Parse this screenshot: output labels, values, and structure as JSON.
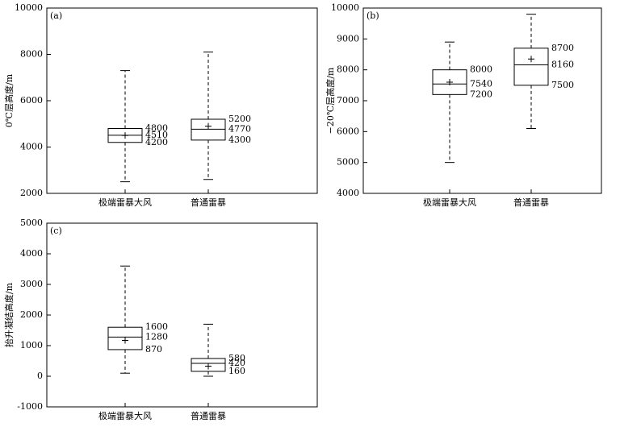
{
  "chart_data": [
    {
      "type": "box",
      "panel_label": "(a)",
      "ylabel": "0℃层高度/m",
      "categories": [
        "极端雷暴大风",
        "普通雷暴"
      ],
      "boxes": [
        {
          "whislo": 2500,
          "q1": 4200,
          "median": 4510,
          "q3": 4800,
          "whishi": 7300,
          "mean": 4500
        },
        {
          "whislo": 2600,
          "q1": 4300,
          "median": 4770,
          "q3": 5200,
          "whishi": 8100,
          "mean": 4900
        }
      ],
      "color": "#000000",
      "ylim": [
        2000,
        10000
      ],
      "yticks": [
        2000,
        4000,
        6000,
        8000,
        10000
      ]
    },
    {
      "type": "box",
      "panel_label": "(b)",
      "ylabel": "−20℃层高度/m",
      "categories": [
        "极端雷暴大风",
        "普通雷暴"
      ],
      "boxes": [
        {
          "whislo": 5000,
          "q1": 7200,
          "median": 7540,
          "q3": 8000,
          "whishi": 8900,
          "mean": 7600
        },
        {
          "whislo": 6100,
          "q1": 7500,
          "median": 8160,
          "q3": 8700,
          "whishi": 9800,
          "mean": 8350
        }
      ],
      "color": "#000000",
      "ylim": [
        4000,
        10000
      ],
      "yticks": [
        4000,
        5000,
        6000,
        7000,
        8000,
        9000,
        10000
      ]
    },
    {
      "type": "box",
      "panel_label": "(c)",
      "ylabel": "抬升凝结高度/m",
      "categories": [
        "极端雷暴大风",
        "普通雷暴"
      ],
      "boxes": [
        {
          "whislo": 100,
          "q1": 870,
          "median": 1280,
          "q3": 1600,
          "whishi": 3600,
          "mean": 1170
        },
        {
          "whislo": 0,
          "q1": 160,
          "median": 420,
          "q3": 580,
          "whishi": 1700,
          "mean": 330
        }
      ],
      "color": "#000000",
      "ylim": [
        -1000,
        5000
      ],
      "yticks": [
        -1000,
        0,
        1000,
        2000,
        3000,
        4000,
        5000
      ]
    }
  ]
}
